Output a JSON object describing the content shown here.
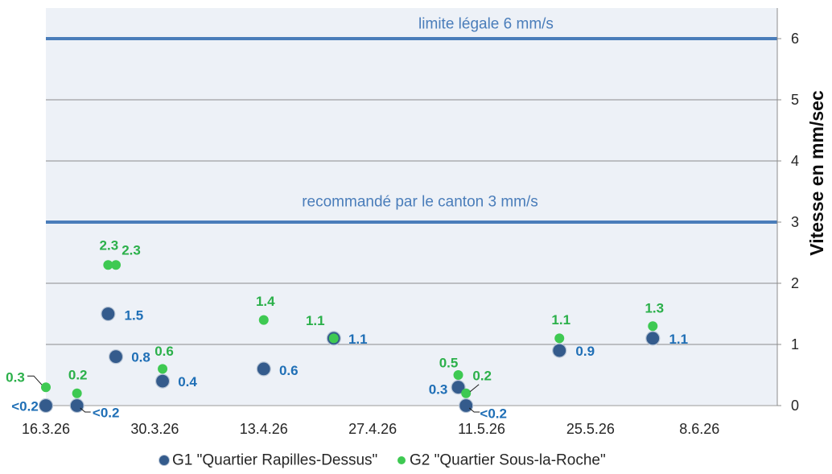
{
  "chart_data": {
    "type": "scatter",
    "ylabel": "Vitesse en mm/sec",
    "x_ticks": [
      "16.3.26",
      "30.3.26",
      "13.4.26",
      "27.4.26",
      "11.5.26",
      "25.5.26",
      "8.6.26"
    ],
    "xlim": [
      "16.3.26",
      "18.6.26"
    ],
    "y_ticks": [
      0,
      1,
      2,
      3,
      4,
      5,
      6
    ],
    "ylim": [
      0,
      6.5
    ],
    "y_axis_position": "right",
    "grid": "horizontal",
    "legend_position": "bottom",
    "series": [
      {
        "name": "G1 \"Quartier Rapilles-Dessus\"",
        "color": "#345b8c",
        "label_color": "#1f6fb6",
        "points": [
          {
            "x": "16.3.26",
            "y": 0,
            "label": "<0.2"
          },
          {
            "x": "20.3.26",
            "y": 0,
            "label": "<0.2"
          },
          {
            "x": "24.3.26",
            "y": 1.5,
            "label": "1.5"
          },
          {
            "x": "25.3.26",
            "y": 0.8,
            "label": "0.8"
          },
          {
            "x": "31.3.26",
            "y": 0.4,
            "label": "0.4"
          },
          {
            "x": "13.4.26",
            "y": 0.6,
            "label": "0.6"
          },
          {
            "x": "22.4.26",
            "y": 1.1,
            "label": "1.1"
          },
          {
            "x": "8.5.26",
            "y": 0.3,
            "label": "0.3"
          },
          {
            "x": "9.5.26",
            "y": 0,
            "label": "<0.2"
          },
          {
            "x": "21.5.26",
            "y": 0.9,
            "label": "0.9"
          },
          {
            "x": "2.6.26",
            "y": 1.1,
            "label": "1.1"
          }
        ]
      },
      {
        "name": "G2 \"Quartier Sous-la-Roche\"",
        "color": "#3ec952",
        "label_color": "#2bb04a",
        "points": [
          {
            "x": "16.3.26",
            "y": 0.3,
            "label": "0.3"
          },
          {
            "x": "20.3.26",
            "y": 0.2,
            "label": "0.2"
          },
          {
            "x": "24.3.26",
            "y": 2.3,
            "label": "2.3"
          },
          {
            "x": "25.3.26",
            "y": 2.3,
            "label": "2.3"
          },
          {
            "x": "31.3.26",
            "y": 0.6,
            "label": "0.6"
          },
          {
            "x": "13.4.26",
            "y": 1.4,
            "label": "1.4"
          },
          {
            "x": "22.4.26",
            "y": 1.1,
            "label": "1.1"
          },
          {
            "x": "8.5.26",
            "y": 0.5,
            "label": "0.5"
          },
          {
            "x": "9.5.26",
            "y": 0.2,
            "label": "0.2"
          },
          {
            "x": "21.5.26",
            "y": 1.1,
            "label": "1.1"
          },
          {
            "x": "2.6.26",
            "y": 1.3,
            "label": "1.3"
          }
        ]
      }
    ],
    "reference_lines": [
      {
        "y": 6,
        "label": "limite légale 6 mm/s",
        "color": "#4a7dba"
      },
      {
        "y": 3,
        "label": "recommandé par le canton 3 mm/s",
        "color": "#4a7dba"
      }
    ]
  }
}
